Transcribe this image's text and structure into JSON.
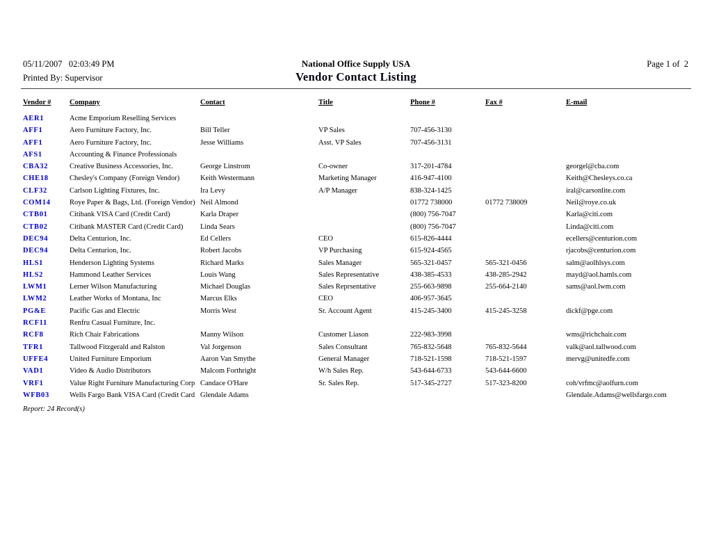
{
  "report": {
    "datetime": "05/11/2007   02:03:49 PM",
    "printed_by": "Printed By: Supervisor",
    "company_name": "National Office Supply USA",
    "title": "Vendor Contact Listing",
    "page_indicator": "Page 1 of  2",
    "footer": "Report: 24 Record(s)"
  },
  "colors": {
    "vendor_link": "#0000dd",
    "text": "#000000",
    "rule": "#3f3f3f"
  },
  "table": {
    "columns": [
      "Vendor #",
      "Company",
      "Contact",
      "Title",
      "Phone #",
      "Fax #",
      "E-mail"
    ],
    "rows": [
      {
        "vendor": "AER1",
        "company": "Acme Emporium Reselling Services",
        "contact": "",
        "title": "",
        "phone": "",
        "fax": "",
        "email": ""
      },
      {
        "vendor": "AFF1",
        "company": "Aero Furniture Factory, Inc.",
        "contact": "Bill Teller",
        "title": "VP Sales",
        "phone": "707-456-3130",
        "fax": "",
        "email": ""
      },
      {
        "vendor": "AFF1",
        "company": "Aero Furniture Factory, Inc.",
        "contact": "Jesse Williams",
        "title": "Asst. VP Sales",
        "phone": "707-456-3131",
        "fax": "",
        "email": ""
      },
      {
        "vendor": "AFS1",
        "company": "Accounting & Finance Professionals",
        "contact": "",
        "title": "",
        "phone": "",
        "fax": "",
        "email": ""
      },
      {
        "vendor": "CBA32",
        "company": "Creative Business Accessories, Inc.",
        "contact": "George Linstrom",
        "title": "Co-owner",
        "phone": "317-201-4784",
        "fax": "",
        "email": "georgel@cba.com"
      },
      {
        "vendor": "CHE18",
        "company": "Chesley's Company (Foreign Vendor)",
        "contact": "Keith Westermann",
        "title": "Marketing Manager",
        "phone": "416-947-4100",
        "fax": "",
        "email": "Keith@Chesleys.co.ca"
      },
      {
        "vendor": "CLF32",
        "company": "Carlson Lighting Fixtures, Inc.",
        "contact": "Ira Levy",
        "title": "A/P Manager",
        "phone": "838-324-1425",
        "fax": "",
        "email": "iral@carsonlite.com"
      },
      {
        "vendor": "COM14",
        "company": "Roye Paper & Bags, Ltd. (Foreign Vendor)",
        "contact": "Neil Almond",
        "title": "",
        "phone": "01772 738000",
        "fax": "01772 738009",
        "email": "Neil@roye.co.uk"
      },
      {
        "vendor": "CTB01",
        "company": "Citibank VISA Card (Credit Card)",
        "contact": "Karla Draper",
        "title": "",
        "phone": "(800) 756-7047",
        "fax": "",
        "email": "Karla@citi.com"
      },
      {
        "vendor": "CTB02",
        "company": "Citibank MASTER Card (Credit Card)",
        "contact": "Linda Sears",
        "title": "",
        "phone": "(800) 756-7047",
        "fax": "",
        "email": "Linda@citi.com"
      },
      {
        "vendor": "DEC94",
        "company": "Delta Centurion, Inc.",
        "contact": "Ed Cellers",
        "title": "CEO",
        "phone": "615-826-4444",
        "fax": "",
        "email": "ecellers@centurion.com"
      },
      {
        "vendor": "DEC94",
        "company": "Delta Centurion, Inc.",
        "contact": "Robert Jacobs",
        "title": "VP Purchasing",
        "phone": "615-924-4565",
        "fax": "",
        "email": "rjacobs@centurion.com"
      },
      {
        "vendor": "HLS1",
        "company": "Henderson Lighting Systems",
        "contact": "Richard Marks",
        "title": "Sales Manager",
        "phone": "565-321-0457",
        "fax": "565-321-0456",
        "email": "salm@aolhlsys.com"
      },
      {
        "vendor": "HLS2",
        "company": "Hammond Leather Services",
        "contact": "Louis Wang",
        "title": "Sales Representative",
        "phone": "438-385-4533",
        "fax": "438-285-2942",
        "email": "mayd@aol.hamls.com"
      },
      {
        "vendor": "LWM1",
        "company": "Lerner Wilson Manufacturing",
        "contact": "Michael Douglas",
        "title": "Sales Reprsentative",
        "phone": "255-663-9898",
        "fax": "255-664-2140",
        "email": "sams@aol.lwm.com"
      },
      {
        "vendor": "LWM2",
        "company": "Leather Works of Montana, Inc",
        "contact": "Marcus Elks",
        "title": "CEO",
        "phone": "406-957-3645",
        "fax": "",
        "email": ""
      },
      {
        "vendor": "PG&E",
        "company": "Pacific Gas and Electric",
        "contact": "Morris West",
        "title": "Sr. Account Agent",
        "phone": "415-245-3400",
        "fax": "415-245-3258",
        "email": "dickf@pge.com"
      },
      {
        "vendor": "RCF11",
        "company": "Renfru Casual Furniture, Inc.",
        "contact": "",
        "title": "",
        "phone": "",
        "fax": "",
        "email": ""
      },
      {
        "vendor": "RCF8",
        "company": "Rich Chair Fabrications",
        "contact": "Manny Wilson",
        "title": "Customer Liason",
        "phone": "222-983-3998",
        "fax": "",
        "email": "wms@richchair.com"
      },
      {
        "vendor": "TFR1",
        "company": "Tallwood Fitzgerald and Ralston",
        "contact": "Val Jorgenson",
        "title": "Sales Consultant",
        "phone": "765-832-5648",
        "fax": "765-832-5644",
        "email": "valk@aol.tallwood.com"
      },
      {
        "vendor": "UFFE4",
        "company": "United Furniture Emporium",
        "contact": "Aaron Van Smythe",
        "title": "General Manager",
        "phone": "718-521-1598",
        "fax": "718-521-1597",
        "email": "mervg@unitedfe.com"
      },
      {
        "vendor": "VAD1",
        "company": "Video & Audio Distributors",
        "contact": "Malcom Forthright",
        "title": "W/h Sales Rep.",
        "phone": "543-644-6733",
        "fax": "543-644-6600",
        "email": ""
      },
      {
        "vendor": "VRF1",
        "company": "Value Right Furniture Manufacturing Corp",
        "contact": "Candace O'Hare",
        "title": "Sr. Sales Rep.",
        "phone": "517-345-2727",
        "fax": "517-323-8200",
        "email": "coh/vrfmc@aolfurn.com"
      },
      {
        "vendor": "WFB03",
        "company": "Wells Fargo Bank VISA Card (Credit Card",
        "contact": "Glendale Adams",
        "title": "",
        "phone": "",
        "fax": "",
        "email": "Glendale.Adams@wellsfargo.com"
      }
    ]
  }
}
